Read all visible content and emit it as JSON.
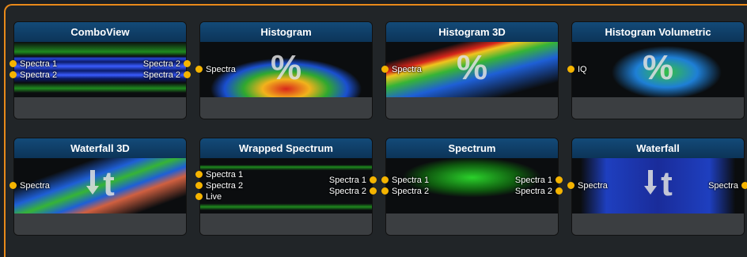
{
  "cards": [
    {
      "title": "ComboView",
      "inputs": [
        "Spectra 1",
        "Spectra 2"
      ],
      "outputs": [
        "Spectra 2",
        "Spectra 2"
      ]
    },
    {
      "title": "Histogram",
      "inputs": [
        "Spectra"
      ],
      "icon": "%"
    },
    {
      "title": "Histogram 3D",
      "inputs": [
        "Spectra"
      ],
      "icon": "%"
    },
    {
      "title": "Histogram Volumetric",
      "inputs": [
        "IQ"
      ],
      "icon": "%"
    },
    {
      "title": "Waterfall 3D",
      "inputs": [
        "Spectra"
      ],
      "icon": "t"
    },
    {
      "title": "Wrapped Spectrum",
      "inputs": [
        "Spectra 1",
        "Spectra 2",
        "Live"
      ],
      "outputs": [
        "Spectra 1",
        "Spectra 2"
      ]
    },
    {
      "title": "Spectrum",
      "inputs": [
        "Spectra 1",
        "Spectra 2"
      ],
      "outputs": [
        "Spectra 1",
        "Spectra 2"
      ]
    },
    {
      "title": "Waterfall",
      "inputs": [
        "Spectra"
      ],
      "outputs": [
        "Spectra"
      ],
      "icon": "t"
    }
  ]
}
